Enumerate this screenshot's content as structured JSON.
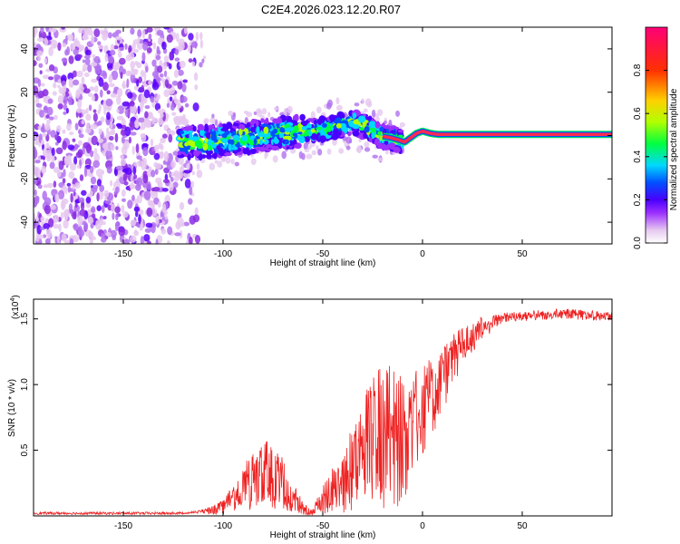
{
  "figure_title": "C2E4.2026.023.12.20.R07",
  "chart_data": [
    {
      "type": "heatmap",
      "title": "C2E4.2026.023.12.20.R07",
      "xlabel": "Height of straight line (km)",
      "ylabel": "Frequency (Hz)",
      "xlim": [
        -195,
        95
      ],
      "ylim": [
        -50,
        50
      ],
      "x_ticks": [
        -150,
        -100,
        -50,
        0,
        50
      ],
      "y_ticks": [
        -40,
        -20,
        0,
        20,
        40
      ],
      "colorbar": {
        "label": "Normalized spectral amplitude",
        "range": [
          0.0,
          1.0
        ],
        "ticks": [
          "0.0",
          "0.2",
          "0.4",
          "0.6",
          "0.8"
        ],
        "colors": [
          "#ffffff",
          "#e6c8f0",
          "#9b30ff",
          "#4a00ff",
          "#0050ff",
          "#00d8ff",
          "#00ff40",
          "#b0ff00",
          "#ffd000",
          "#ff3000",
          "#ff0078"
        ]
      },
      "ridge_center_km_hz": [
        [
          -122,
          -3
        ],
        [
          -110,
          -3
        ],
        [
          -100,
          -2
        ],
        [
          -90,
          -1
        ],
        [
          -80,
          0
        ],
        [
          -70,
          1
        ],
        [
          -60,
          2
        ],
        [
          -50,
          3
        ],
        [
          -40,
          5
        ],
        [
          -35,
          6
        ],
        [
          -28,
          4
        ],
        [
          -22,
          0
        ],
        [
          -16,
          -1
        ],
        [
          -12,
          -2
        ],
        [
          -9,
          -3
        ],
        [
          -6,
          -1
        ],
        [
          -3,
          1
        ],
        [
          0,
          2
        ],
        [
          4,
          1
        ],
        [
          8,
          0.5
        ],
        [
          50,
          0.5
        ],
        [
          95,
          0.5
        ]
      ],
      "noise_region_km": [
        -195,
        -110
      ]
    },
    {
      "type": "line",
      "xlabel": "Height of straight line (km)",
      "ylabel": "SNR (10 * v/v)",
      "y_scale_label": "(x10",
      "y_scale_exponent": "4",
      "xlim": [
        -195,
        95
      ],
      "ylim": [
        0,
        1.65
      ],
      "x_ticks": [
        -150,
        -100,
        -50,
        0,
        50
      ],
      "y_ticks": [
        0.5,
        1.0,
        1.5
      ],
      "y_tick_labels": [
        "0.5",
        "1.0",
        "1.5"
      ],
      "line_color": "#ee2222",
      "envelope": [
        [
          -195,
          0.02
        ],
        [
          -150,
          0.02
        ],
        [
          -120,
          0.02
        ],
        [
          -110,
          0.05
        ],
        [
          -100,
          0.12
        ],
        [
          -90,
          0.4
        ],
        [
          -80,
          0.6
        ],
        [
          -70,
          0.45
        ],
        [
          -60,
          0.1
        ],
        [
          -55,
          0.05
        ],
        [
          -50,
          0.25
        ],
        [
          -40,
          0.5
        ],
        [
          -30,
          0.9
        ],
        [
          -20,
          1.2
        ],
        [
          -10,
          1.1
        ],
        [
          -5,
          1.1
        ],
        [
          0,
          1.15
        ],
        [
          10,
          1.3
        ],
        [
          20,
          1.45
        ],
        [
          30,
          1.52
        ],
        [
          40,
          1.55
        ],
        [
          50,
          1.56
        ],
        [
          60,
          1.57
        ],
        [
          70,
          1.58
        ],
        [
          80,
          1.57
        ],
        [
          95,
          1.56
        ]
      ],
      "noise_fraction": [
        [
          -195,
          0.3
        ],
        [
          -120,
          0.3
        ],
        [
          -105,
          0.9
        ],
        [
          -60,
          0.9
        ],
        [
          -50,
          0.95
        ],
        [
          -10,
          0.95
        ],
        [
          0,
          0.6
        ],
        [
          20,
          0.2
        ],
        [
          40,
          0.05
        ],
        [
          95,
          0.05
        ]
      ]
    }
  ]
}
